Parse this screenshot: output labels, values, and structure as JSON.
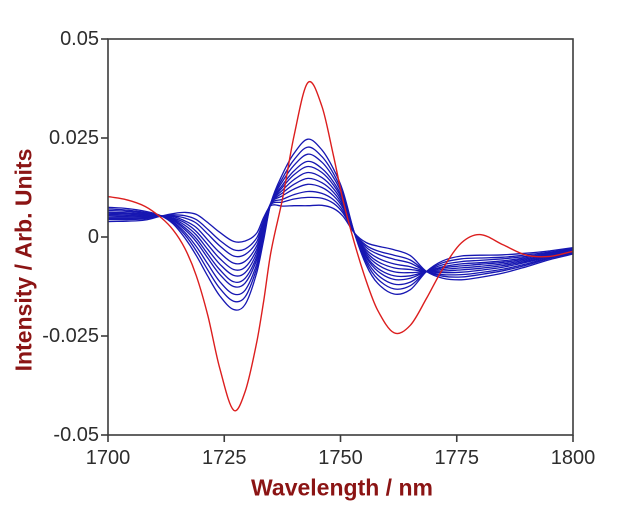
{
  "chart_data": {
    "type": "line",
    "title": "",
    "xlabel": "Wavelength / nm",
    "ylabel": "Intensity / Arb. Units",
    "xlim": [
      1700,
      1800
    ],
    "ylim": [
      -0.05,
      0.05
    ],
    "x_ticks": [
      1700,
      1725,
      1750,
      1775,
      1800
    ],
    "x_tick_labels": [
      "1700",
      "1725",
      "1750",
      "1775",
      "1800"
    ],
    "y_ticks": [
      0.05,
      0.025,
      0,
      -0.025,
      -0.05
    ],
    "y_tick_labels": [
      "0.05",
      "0.025",
      "0",
      "-0.025",
      "-0.05"
    ],
    "grid": false,
    "legend": "none",
    "axis_color": "#3c3c3c",
    "tick_label_color": "#2d2d2d",
    "axis_title_color": "#8b1414",
    "value_scale": 0.0001,
    "x": [
      1700,
      1704,
      1708,
      1711.5,
      1714,
      1716.5,
      1719,
      1721.5,
      1724,
      1727,
      1729.5,
      1732,
      1733.5,
      1735,
      1737.5,
      1740,
      1743,
      1746,
      1748.5,
      1750.5,
      1753,
      1755.5,
      1758,
      1761.5,
      1765,
      1768.5,
      1772,
      1776,
      1780,
      1785,
      1790,
      1795,
      1800
    ],
    "isosbestic_points_nm": [
      1711.5,
      1735,
      1753,
      1768.5
    ],
    "series": [
      {
        "name": "blue-spectrum-1",
        "color": "#1717b2",
        "width": 1.3,
        "values": [
          75,
          72,
          65,
          53,
          33,
          -2,
          -47,
          -100,
          -148,
          -183,
          -170,
          -90,
          -6,
          85,
          158,
          211,
          247,
          220,
          172,
          117,
          10,
          -70,
          -117,
          -144,
          -133,
          -87,
          -60,
          -48,
          -46,
          -45,
          -41,
          -35,
          -27
        ]
      },
      {
        "name": "blue-spectrum-2",
        "color": "#1717b2",
        "width": 1.3,
        "values": [
          71,
          68,
          62,
          53,
          36,
          6,
          -35,
          -84,
          -129,
          -162,
          -151,
          -78,
          1,
          85,
          148,
          195,
          227,
          203,
          160,
          109,
          10,
          -63,
          -106,
          -131,
          -123,
          -87,
          -65,
          -55,
          -53,
          -51,
          -45,
          -38,
          -29
        ]
      },
      {
        "name": "blue-spectrum-3",
        "color": "#1717b2",
        "width": 1.3,
        "values": [
          67,
          65,
          60,
          53,
          39,
          12,
          -24,
          -69,
          -112,
          -144,
          -134,
          -68,
          7,
          85,
          140,
          181,
          209,
          189,
          150,
          103,
          10,
          -57,
          -96,
          -119,
          -114,
          -87,
          -70,
          -62,
          -59,
          -55,
          -49,
          -40,
          -31
        ]
      },
      {
        "name": "blue-spectrum-4",
        "color": "#1717b2",
        "width": 1.3,
        "values": [
          63,
          61,
          58,
          53,
          42,
          19,
          -12,
          -54,
          -94,
          -125,
          -116,
          -57,
          13,
          85,
          131,
          167,
          191,
          173,
          139,
          96,
          10,
          -51,
          -86,
          -107,
          -104,
          -87,
          -75,
          -68,
          -65,
          -60,
          -52,
          -42,
          -32
        ]
      },
      {
        "name": "blue-spectrum-5",
        "color": "#1717b2",
        "width": 1.3,
        "values": [
          60,
          59,
          56,
          53,
          44,
          24,
          -4,
          -44,
          -82,
          -113,
          -104,
          -49,
          17,
          85,
          125,
          157,
          178,
          163,
          131,
          91,
          10,
          -47,
          -79,
          -98,
          -98,
          -87,
          -78,
          -73,
          -69,
          -64,
          -55,
          -44,
          -34
        ]
      },
      {
        "name": "blue-spectrum-6",
        "color": "#1717b2",
        "width": 1.3,
        "values": [
          57,
          56,
          54,
          53,
          46,
          30,
          5,
          -32,
          -68,
          -97,
          -90,
          -40,
          22,
          85,
          118,
          145,
          163,
          150,
          122,
          85,
          10,
          -42,
          -70,
          -88,
          -90,
          -87,
          -82,
          -78,
          -74,
          -68,
          -58,
          -46,
          -35
        ]
      },
      {
        "name": "blue-spectrum-7",
        "color": "#1717b2",
        "width": 1.3,
        "values": [
          54,
          53,
          52,
          53,
          48,
          36,
          14,
          -20,
          -54,
          -82,
          -76,
          -31,
          27,
          85,
          111,
          133,
          148,
          137,
          113,
          79,
          10,
          -37,
          -62,
          -78,
          -82,
          -87,
          -86,
          -83,
          -79,
          -72,
          -61,
          -48,
          -36
        ]
      },
      {
        "name": "blue-spectrum-8",
        "color": "#1717b2",
        "width": 1.3,
        "values": [
          50,
          50,
          50,
          53,
          51,
          41,
          24,
          -8,
          -39,
          -66,
          -61,
          -22,
          32,
          85,
          104,
          121,
          133,
          125,
          104,
          74,
          10,
          -32,
          -53,
          -68,
          -75,
          -87,
          -90,
          -89,
          -84,
          -76,
          -64,
          -50,
          -38
        ]
      },
      {
        "name": "blue-spectrum-9",
        "color": "#1717b2",
        "width": 1.3,
        "values": [
          47,
          47,
          48,
          53,
          53,
          48,
          35,
          7,
          -22,
          -48,
          -44,
          -12,
          38,
          84,
          95,
          107,
          115,
          110,
          94,
          67,
          10,
          -26,
          -43,
          -56,
          -66,
          -87,
          -95,
          -95,
          -90,
          -81,
          -68,
          -52,
          -40
        ]
      },
      {
        "name": "blue-spectrum-10",
        "color": "#1717b2",
        "width": 1.3,
        "values": [
          44,
          44,
          46,
          53,
          56,
          54,
          44,
          19,
          -8,
          -32,
          -30,
          -2,
          43,
          82,
          88,
          96,
          100,
          98,
          85,
          61,
          10,
          -21,
          -35,
          -46,
          -58,
          -87,
          -99,
          -101,
          -95,
          -85,
          -71,
          -54,
          -41
        ]
      },
      {
        "name": "blue-spectrum-11",
        "color": "#1717b2",
        "width": 1.3,
        "values": [
          39,
          40,
          43,
          53,
          59,
          62,
          57,
          36,
          12,
          -11,
          -10,
          10,
          50,
          79,
          78,
          79,
          79,
          80,
          72,
          53,
          10,
          -14,
          -23,
          -32,
          -47,
          -87,
          -104,
          -108,
          -102,
          -91,
          -75,
          -57,
          -43
        ]
      },
      {
        "name": "red-spectrum",
        "color": "#dc1e1e",
        "width": 1.4,
        "values": [
          102,
          94,
          77,
          48,
          18,
          -28,
          -98,
          -200,
          -330,
          -437,
          -390,
          -265,
          -160,
          -40,
          95,
          255,
          390,
          330,
          205,
          95,
          -15,
          -110,
          -185,
          -242,
          -223,
          -155,
          -80,
          -15,
          6,
          -20,
          -46,
          -49,
          -36
        ]
      }
    ]
  }
}
